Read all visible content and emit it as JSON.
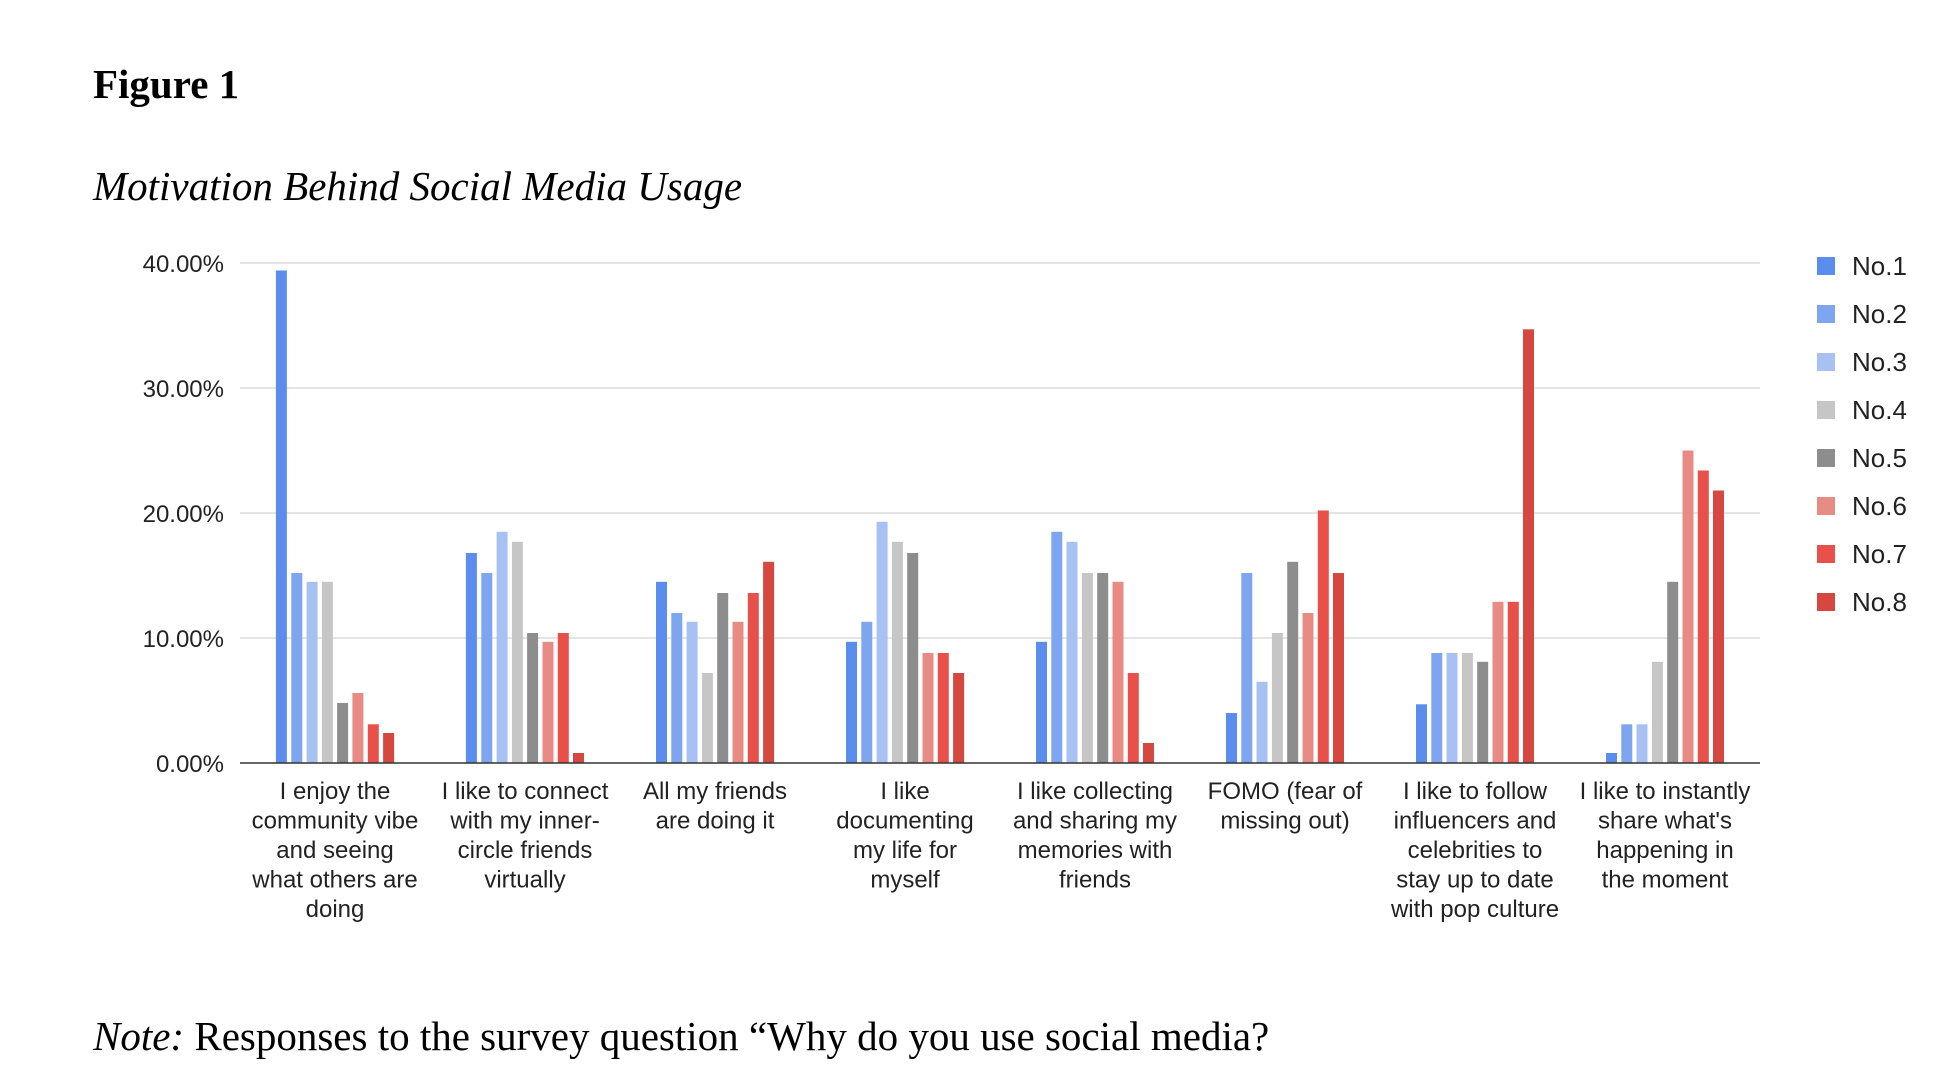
{
  "figure_label": "Figure 1",
  "figure_title": "Motivation Behind Social Media Usage",
  "note": {
    "label": "Note:",
    "text": " Responses to the survey question “Why do you use social media?"
  },
  "chart_data": {
    "type": "bar",
    "title": "Motivation Behind Social Media Usage",
    "xlabel": "",
    "ylabel": "",
    "ylim": [
      0,
      40
    ],
    "yticks": [
      0,
      10,
      20,
      30,
      40
    ],
    "ytick_labels": [
      "0.00%",
      "10.00%",
      "20.00%",
      "30.00%",
      "40.00%"
    ],
    "grid": true,
    "legend_position": "right",
    "categories": [
      [
        "I enjoy the",
        "community vibe",
        "and seeing",
        "what others are",
        "doing"
      ],
      [
        "I like to connect",
        "with my inner-",
        "circle friends",
        "virtually"
      ],
      [
        "All my friends",
        "are doing it"
      ],
      [
        "I like",
        "documenting",
        "my life for",
        "myself"
      ],
      [
        "I like collecting",
        "and sharing my",
        "memories with",
        "friends"
      ],
      [
        "FOMO (fear of",
        "missing out)"
      ],
      [
        "I like to follow",
        "influencers and",
        "celebrities to",
        "stay up to date",
        "with pop culture"
      ],
      [
        "I like to instantly",
        "share what's",
        "happening in",
        "the moment"
      ]
    ],
    "series": [
      {
        "name": "No.1",
        "color": "#5b8def",
        "values": [
          39.4,
          16.8,
          14.5,
          9.7,
          9.7,
          4.0,
          4.7,
          0.8
        ]
      },
      {
        "name": "No.2",
        "color": "#7ea6f0",
        "values": [
          15.2,
          15.2,
          12.0,
          11.3,
          18.5,
          15.2,
          8.8,
          3.1
        ]
      },
      {
        "name": "No.3",
        "color": "#a8c1f3",
        "values": [
          14.5,
          18.5,
          11.3,
          19.3,
          17.7,
          6.5,
          8.8,
          3.1
        ]
      },
      {
        "name": "No.4",
        "color": "#c6c6c6",
        "values": [
          14.5,
          17.7,
          7.2,
          17.7,
          15.2,
          10.4,
          8.8,
          8.1
        ]
      },
      {
        "name": "No.5",
        "color": "#8d8d8d",
        "values": [
          4.8,
          10.4,
          13.6,
          16.8,
          15.2,
          16.1,
          8.1,
          14.5
        ]
      },
      {
        "name": "No.6",
        "color": "#e88b85",
        "values": [
          5.6,
          9.7,
          11.3,
          8.8,
          14.5,
          12.0,
          12.9,
          25.0
        ]
      },
      {
        "name": "No.7",
        "color": "#e9504a",
        "values": [
          3.1,
          10.4,
          13.6,
          8.8,
          7.2,
          20.2,
          12.9,
          23.4
        ]
      },
      {
        "name": "No.8",
        "color": "#d6483f",
        "values": [
          2.4,
          0.8,
          16.1,
          7.2,
          1.6,
          15.2,
          34.7,
          21.8
        ]
      }
    ]
  }
}
